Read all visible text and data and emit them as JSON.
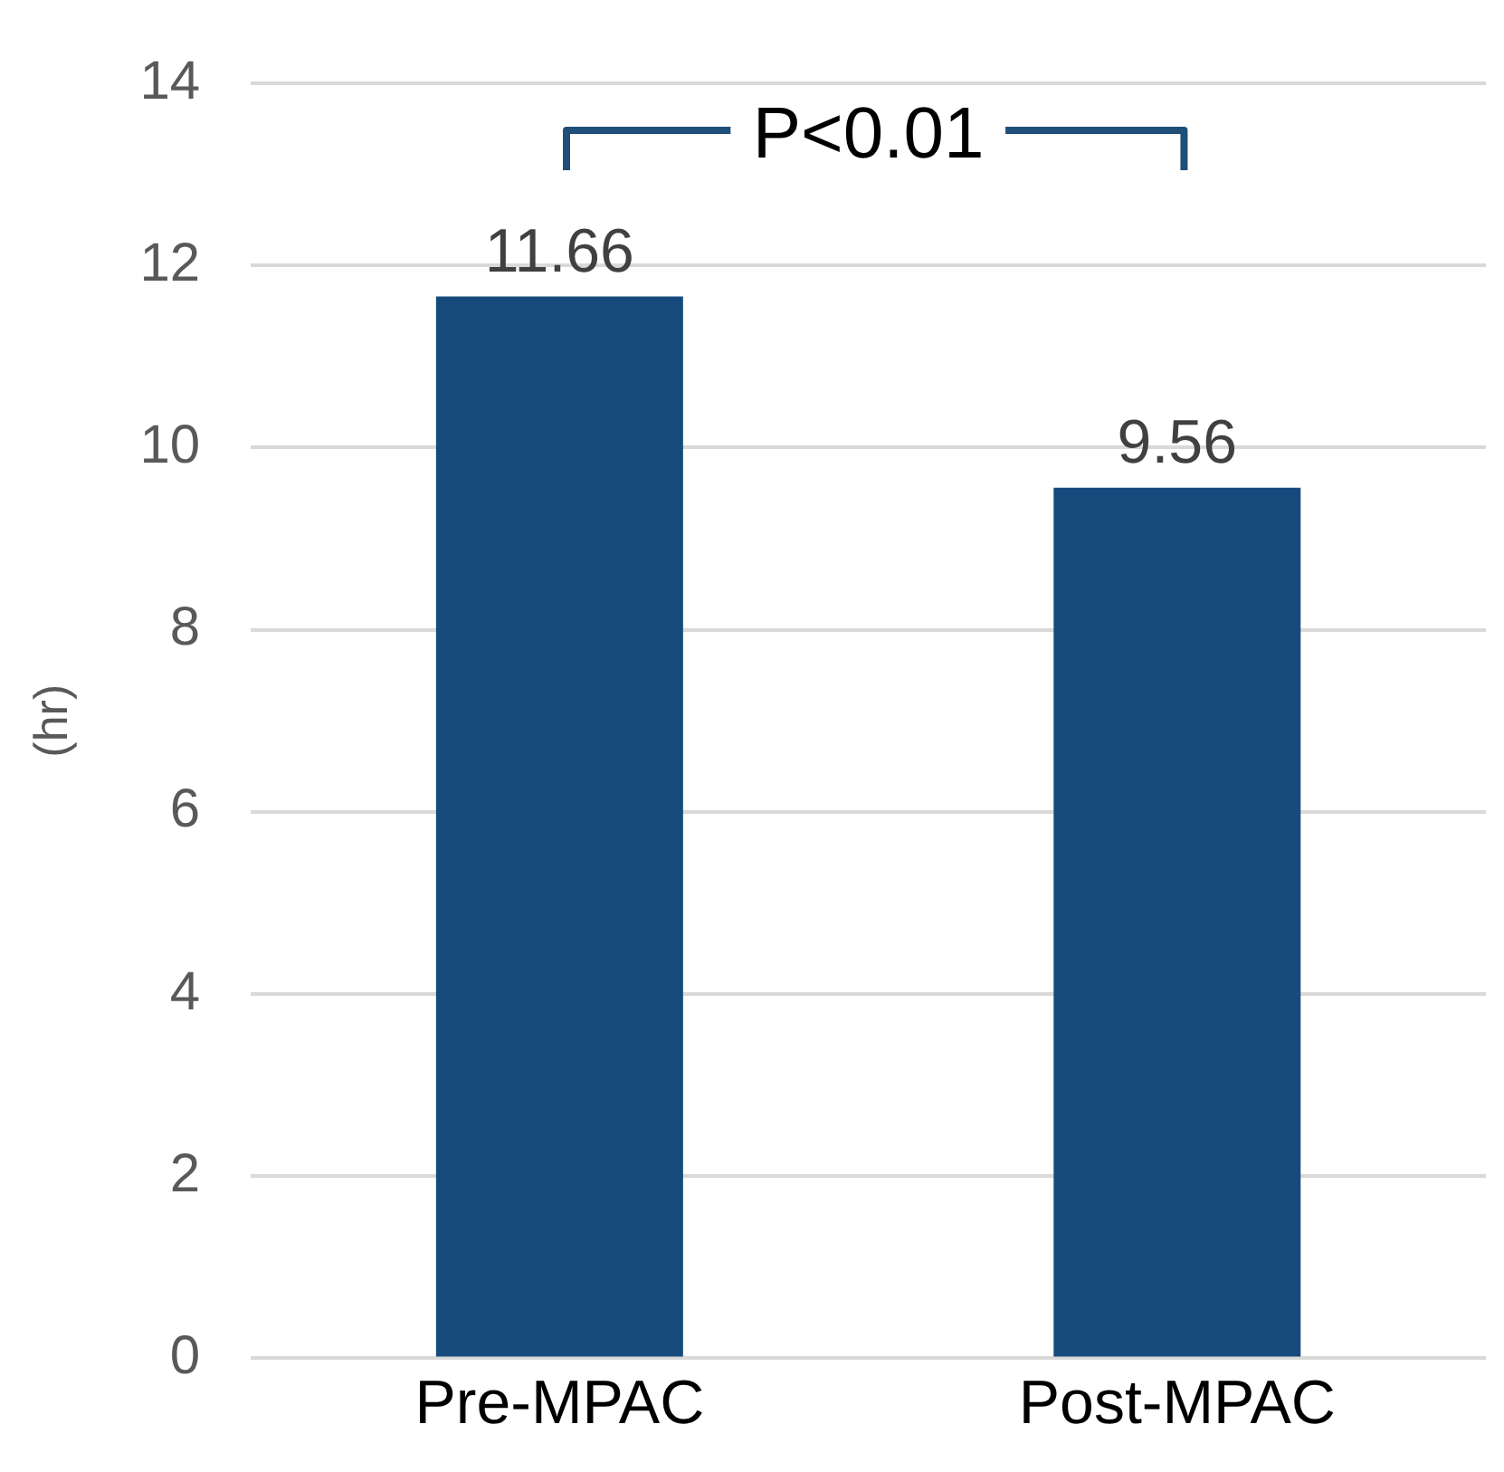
{
  "chart_data": {
    "type": "bar",
    "ylabel": "(hr)",
    "categories": [
      "Pre-MPAC",
      "Post-MPAC"
    ],
    "values": [
      11.66,
      9.56
    ],
    "color": "#174a7c",
    "ylim": [
      0,
      14
    ],
    "yticks": [
      0,
      2,
      4,
      6,
      8,
      10,
      12,
      14
    ],
    "grid": "y",
    "data_labels": true,
    "annotations": [
      "P<0.01"
    ]
  }
}
